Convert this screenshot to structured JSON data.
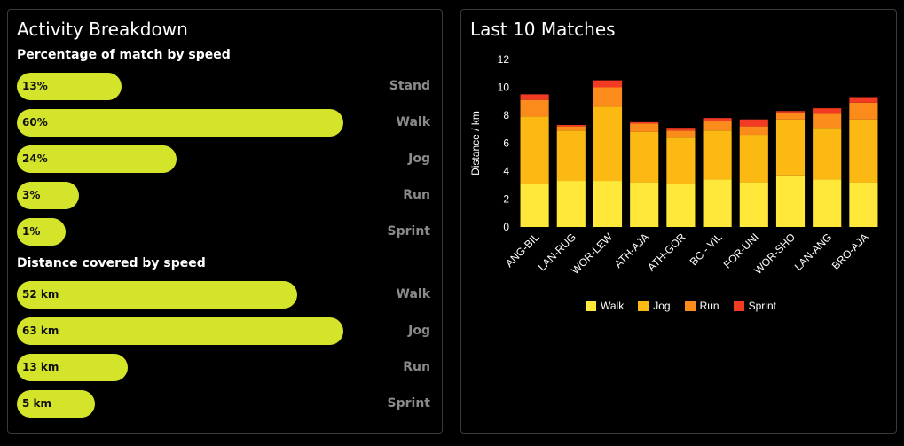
{
  "left_panel": {
    "title": "Activity Breakdown",
    "percentage_section": {
      "title": "Percentage of match by speed",
      "items": [
        {
          "label": "Stand",
          "value_text": "13%",
          "value": 13
        },
        {
          "label": "Walk",
          "value_text": "60%",
          "value": 60
        },
        {
          "label": "Jog",
          "value_text": "24%",
          "value": 24
        },
        {
          "label": "Run",
          "value_text": "3%",
          "value": 3
        },
        {
          "label": "Sprint",
          "value_text": "1%",
          "value": 1
        }
      ]
    },
    "distance_section": {
      "title": "Distance covered by speed",
      "items": [
        {
          "label": "Walk",
          "value_text": "52 km",
          "value": 52
        },
        {
          "label": "Jog",
          "value_text": "63 km",
          "value": 63
        },
        {
          "label": "Run",
          "value_text": "13 km",
          "value": 13
        },
        {
          "label": "Sprint",
          "value_text": "5 km",
          "value": 5
        }
      ]
    }
  },
  "right_panel": {
    "title": "Last 10 Matches"
  },
  "colors": {
    "bar": "#d4e42a",
    "walk": "#ffe83a",
    "jog": "#fdb913",
    "run": "#fb8c1c",
    "sprint": "#f33a22"
  },
  "chart_data": {
    "type": "bar",
    "stacked": true,
    "categories": [
      "ANG-BIL",
      "LAN-RUG",
      "WOR-LEW",
      "ATH-AJA",
      "ATH-GOR",
      "BC - VIL",
      "FOR-UNI",
      "WOR-SHO",
      "LAN-ANG",
      "BRO-AJA"
    ],
    "series": [
      {
        "name": "Walk",
        "values": [
          3.1,
          3.3,
          3.3,
          3.2,
          3.1,
          3.4,
          3.2,
          3.7,
          3.4,
          3.2
        ]
      },
      {
        "name": "Jog",
        "values": [
          4.8,
          3.6,
          5.3,
          3.6,
          3.3,
          3.5,
          3.4,
          4.0,
          3.7,
          4.5
        ]
      },
      {
        "name": "Run",
        "values": [
          1.2,
          0.3,
          1.4,
          0.6,
          0.5,
          0.7,
          0.6,
          0.5,
          1.0,
          1.2
        ]
      },
      {
        "name": "Sprint",
        "values": [
          0.4,
          0.1,
          0.5,
          0.1,
          0.2,
          0.2,
          0.5,
          0.1,
          0.4,
          0.4
        ]
      }
    ],
    "title": "",
    "xlabel": "",
    "ylabel": "Distance / km",
    "ylim": [
      0,
      12
    ],
    "yticks": [
      0,
      2,
      4,
      6,
      8,
      10,
      12
    ],
    "grid": false,
    "legend": "bottom"
  }
}
